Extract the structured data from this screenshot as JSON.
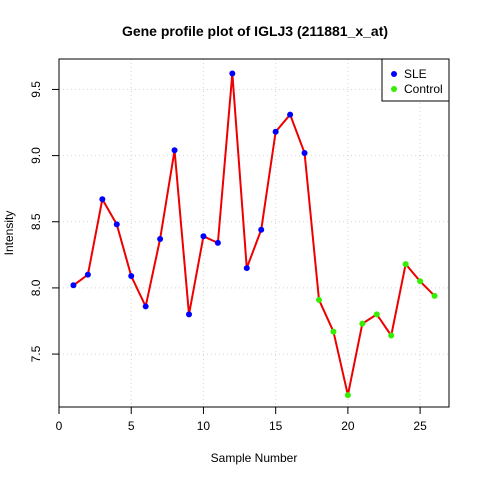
{
  "chart_data": {
    "type": "line",
    "title": "Gene profile plot of IGLJ3 (211881_x_at)",
    "xlabel": "Sample Number",
    "ylabel": "Intensity",
    "xlim": [
      0.0,
      27.0
    ],
    "ylim": [
      7.1,
      9.73
    ],
    "x_ticks": [
      0,
      5,
      10,
      15,
      20,
      25
    ],
    "y_ticks": [
      7.5,
      8.0,
      8.5,
      9.0,
      9.5
    ],
    "grid": true,
    "legend_position": "top-right",
    "line_color": "#ee0000",
    "x": [
      1,
      2,
      3,
      4,
      5,
      6,
      7,
      8,
      9,
      10,
      11,
      12,
      13,
      14,
      15,
      16,
      17,
      18,
      19,
      20,
      21,
      22,
      23,
      24,
      25,
      26
    ],
    "values": [
      8.02,
      8.1,
      8.67,
      8.48,
      8.09,
      7.86,
      8.37,
      9.04,
      7.8,
      8.39,
      8.34,
      9.62,
      8.15,
      8.44,
      9.18,
      9.31,
      9.02,
      7.91,
      7.67,
      7.19,
      7.73,
      7.8,
      7.64,
      8.18,
      8.05,
      7.94
    ],
    "series": [
      {
        "name": "SLE",
        "color": "#0000ff",
        "x": [
          1,
          2,
          3,
          4,
          5,
          6,
          7,
          8,
          9,
          10,
          11,
          12,
          13,
          14,
          15,
          16,
          17
        ],
        "values": [
          8.02,
          8.1,
          8.67,
          8.48,
          8.09,
          7.86,
          8.37,
          9.04,
          7.8,
          8.39,
          8.34,
          9.62,
          8.15,
          8.44,
          9.18,
          9.31,
          9.02
        ]
      },
      {
        "name": "Control",
        "color": "#33ee00",
        "x": [
          18,
          19,
          20,
          21,
          22,
          23,
          24,
          25,
          26
        ],
        "values": [
          7.91,
          7.67,
          7.19,
          7.73,
          7.8,
          7.64,
          8.18,
          8.05,
          7.94
        ]
      }
    ]
  }
}
